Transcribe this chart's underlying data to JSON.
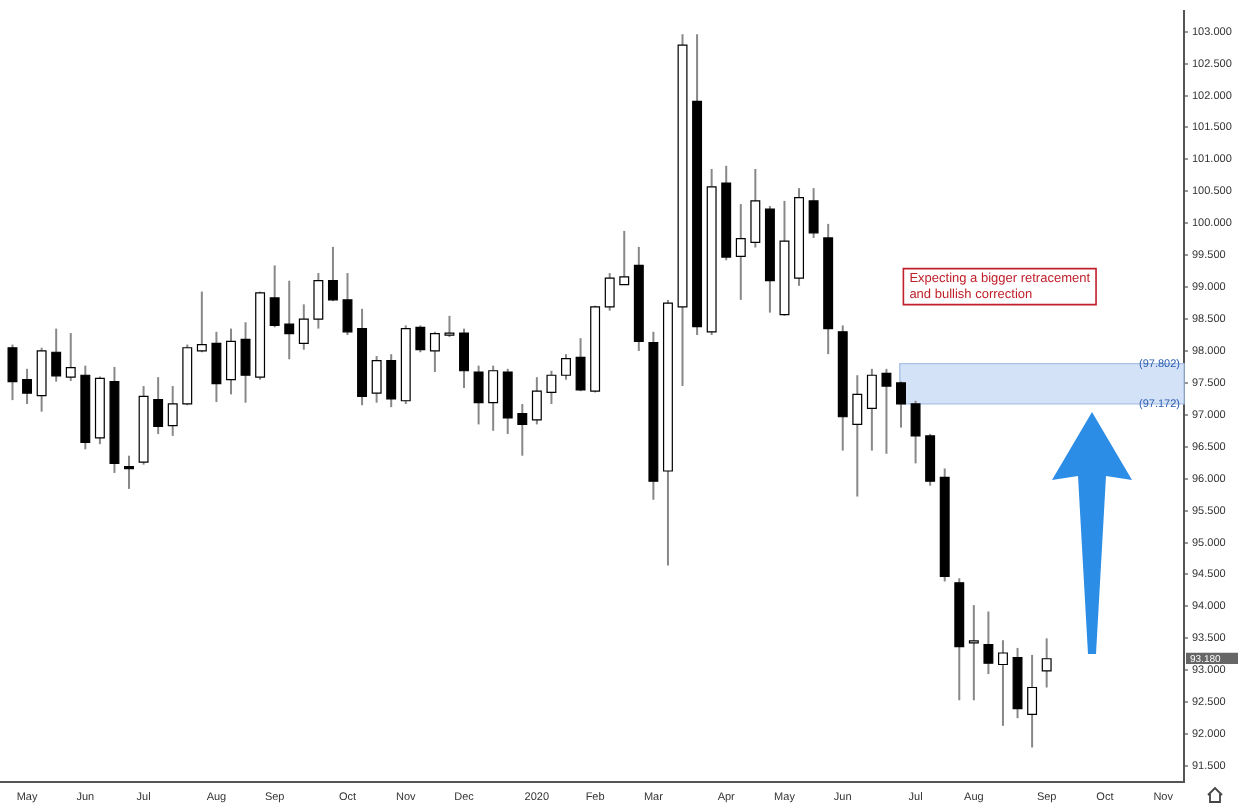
{
  "chart_data": {
    "type": "candlestick",
    "colors": [
      "#000000",
      "#000000",
      "#ffffff",
      "#000000",
      "#ffffff",
      "#000000",
      "#ffffff",
      "#000000",
      "#000000",
      "#ffffff",
      "#000000",
      "#ffffff",
      "#ffffff",
      "#ffffff",
      "#000000",
      "#ffffff",
      "#000000",
      "#ffffff",
      "#000000",
      "#000000",
      "#ffffff",
      "#ffffff",
      "#000000",
      "#000000",
      "#000000",
      "#ffffff",
      "#000000",
      "#ffffff",
      "#000000",
      "#ffffff",
      "#ffffff",
      "#000000",
      "#000000",
      "#ffffff",
      "#000000",
      "#000000",
      "#ffffff",
      "#ffffff",
      "#ffffff",
      "#000000",
      "#ffffff",
      "#ffffff",
      "#ffffff",
      "#000000",
      "#000000",
      "#ffffff",
      "#ffffff",
      "#000000",
      "#ffffff",
      "#000000",
      "#ffffff",
      "#ffffff",
      "#000000",
      "#ffffff",
      "#ffffff",
      "#000000",
      "#000000",
      "#000000",
      "#ffffff",
      "#ffffff",
      "#000000",
      "#000000",
      "#000000",
      "#000000",
      "#000000",
      "#000000",
      "#ffffff",
      "#000000",
      "#ffffff",
      "#000000",
      "#ffffff",
      "#ffffff"
    ],
    "x": [
      "2019-04-29",
      "2019-05-06",
      "2019-05-13",
      "2019-05-20",
      "2019-05-27",
      "2019-06-03",
      "2019-06-10",
      "2019-06-17",
      "2019-06-24",
      "2019-07-01",
      "2019-07-08",
      "2019-07-15",
      "2019-07-22",
      "2019-07-29",
      "2019-08-05",
      "2019-08-12",
      "2019-08-19",
      "2019-08-26",
      "2019-09-02",
      "2019-09-09",
      "2019-09-16",
      "2019-09-23",
      "2019-09-30",
      "2019-10-07",
      "2019-10-14",
      "2019-10-21",
      "2019-10-28",
      "2019-11-04",
      "2019-11-11",
      "2019-11-18",
      "2019-11-25",
      "2019-12-02",
      "2019-12-09",
      "2019-12-16",
      "2019-12-23",
      "2019-12-30",
      "2020-01-06",
      "2020-01-13",
      "2020-01-20",
      "2020-01-27",
      "2020-02-03",
      "2020-02-10",
      "2020-02-17",
      "2020-02-24",
      "2020-03-02",
      "2020-03-09",
      "2020-03-16",
      "2020-03-23",
      "2020-03-30",
      "2020-04-06",
      "2020-04-13",
      "2020-04-20",
      "2020-04-27",
      "2020-05-04",
      "2020-05-11",
      "2020-05-18",
      "2020-05-25",
      "2020-06-01",
      "2020-06-08",
      "2020-06-15",
      "2020-06-22",
      "2020-06-29",
      "2020-07-06",
      "2020-07-13",
      "2020-07-20",
      "2020-07-27",
      "2020-08-03",
      "2020-08-10",
      "2020-08-17",
      "2020-08-24",
      "2020-08-31",
      "2020-09-07"
    ],
    "ohlc": [
      [
        98.05,
        98.1,
        97.23,
        97.52
      ],
      [
        97.55,
        97.72,
        97.17,
        97.34
      ],
      [
        97.3,
        98.05,
        97.05,
        98.0
      ],
      [
        97.98,
        98.35,
        97.52,
        97.61
      ],
      [
        97.59,
        98.28,
        97.53,
        97.74
      ],
      [
        97.62,
        97.77,
        96.46,
        96.57
      ],
      [
        96.64,
        97.6,
        96.54,
        97.57
      ],
      [
        97.52,
        97.75,
        96.09,
        96.24
      ],
      [
        96.19,
        96.36,
        95.84,
        96.17
      ],
      [
        96.26,
        97.45,
        96.22,
        97.29
      ],
      [
        97.24,
        97.59,
        96.7,
        96.82
      ],
      [
        96.83,
        97.45,
        96.67,
        97.17
      ],
      [
        97.17,
        98.1,
        97.15,
        98.05
      ],
      [
        98.0,
        98.93,
        97.98,
        98.1
      ],
      [
        98.12,
        98.3,
        97.2,
        97.49
      ],
      [
        97.55,
        98.35,
        97.32,
        98.15
      ],
      [
        98.18,
        98.45,
        97.19,
        97.62
      ],
      [
        97.59,
        98.93,
        97.55,
        98.91
      ],
      [
        98.83,
        99.34,
        98.37,
        98.4
      ],
      [
        98.42,
        99.1,
        97.87,
        98.27
      ],
      [
        98.12,
        98.73,
        98.02,
        98.5
      ],
      [
        98.5,
        99.22,
        98.35,
        99.1
      ],
      [
        99.1,
        99.63,
        98.78,
        98.8
      ],
      [
        98.8,
        99.22,
        98.25,
        98.3
      ],
      [
        98.35,
        98.66,
        97.15,
        97.29
      ],
      [
        97.34,
        97.92,
        97.19,
        97.85
      ],
      [
        97.85,
        97.95,
        97.12,
        97.25
      ],
      [
        97.22,
        98.4,
        97.17,
        98.35
      ],
      [
        98.37,
        98.4,
        97.98,
        98.02
      ],
      [
        98.0,
        98.3,
        97.67,
        98.27
      ],
      [
        98.26,
        98.55,
        98.22,
        98.28
      ],
      [
        98.28,
        98.35,
        97.42,
        97.69
      ],
      [
        97.67,
        97.77,
        96.85,
        97.19
      ],
      [
        97.19,
        97.77,
        96.75,
        97.69
      ],
      [
        97.67,
        97.72,
        96.7,
        96.95
      ],
      [
        97.02,
        97.17,
        96.36,
        96.85
      ],
      [
        96.92,
        97.59,
        96.85,
        97.37
      ],
      [
        97.35,
        97.69,
        97.17,
        97.62
      ],
      [
        97.62,
        97.95,
        97.55,
        97.88
      ],
      [
        97.9,
        98.2,
        97.37,
        97.39
      ],
      [
        97.37,
        98.71,
        97.35,
        98.69
      ],
      [
        98.69,
        99.22,
        98.63,
        99.14
      ],
      [
        99.04,
        99.88,
        99.04,
        99.16
      ],
      [
        99.34,
        99.63,
        98.0,
        98.15
      ],
      [
        98.13,
        98.3,
        95.67,
        95.96
      ],
      [
        96.12,
        98.8,
        94.64,
        98.75
      ],
      [
        98.69,
        102.96,
        97.45,
        102.79
      ],
      [
        101.91,
        102.96,
        98.25,
        98.38
      ],
      [
        98.3,
        100.85,
        98.25,
        100.57
      ],
      [
        100.63,
        100.9,
        99.42,
        99.47
      ],
      [
        99.48,
        100.3,
        98.8,
        99.76
      ],
      [
        99.7,
        100.85,
        99.62,
        100.35
      ],
      [
        100.22,
        100.27,
        98.6,
        99.1
      ],
      [
        98.57,
        100.35,
        98.55,
        99.72
      ],
      [
        99.14,
        100.55,
        99.02,
        100.4
      ],
      [
        100.35,
        100.55,
        99.77,
        99.85
      ],
      [
        99.77,
        99.99,
        97.95,
        98.35
      ],
      [
        98.3,
        98.4,
        96.44,
        96.97
      ],
      [
        96.85,
        97.62,
        95.72,
        97.32
      ],
      [
        97.1,
        97.72,
        96.44,
        97.62
      ],
      [
        97.65,
        97.72,
        96.39,
        97.45
      ],
      [
        97.5,
        97.52,
        96.8,
        97.17
      ],
      [
        97.17,
        97.22,
        96.24,
        96.67
      ],
      [
        96.67,
        96.7,
        95.89,
        95.96
      ],
      [
        96.02,
        96.16,
        94.39,
        94.47
      ],
      [
        94.37,
        94.44,
        92.53,
        93.37
      ],
      [
        93.44,
        94.02,
        92.53,
        93.46
      ],
      [
        93.4,
        93.92,
        92.94,
        93.11
      ],
      [
        93.09,
        93.47,
        92.13,
        93.27
      ],
      [
        93.2,
        93.35,
        92.25,
        92.4
      ],
      [
        92.31,
        93.24,
        91.79,
        92.73
      ],
      [
        92.99,
        93.5,
        92.73,
        93.18
      ]
    ],
    "xlim": [
      "2019-04-23",
      "2020-11-12"
    ],
    "xticks": [
      {
        "value": "2019-05-06",
        "label": "May"
      },
      {
        "value": "2019-06-03",
        "label": "Jun"
      },
      {
        "value": "2019-07-01",
        "label": "Jul"
      },
      {
        "value": "2019-08-05",
        "label": "Aug"
      },
      {
        "value": "2019-09-02",
        "label": "Sep"
      },
      {
        "value": "2019-10-07",
        "label": "Oct"
      },
      {
        "value": "2019-11-04",
        "label": "Nov"
      },
      {
        "value": "2019-12-02",
        "label": "Dec"
      },
      {
        "value": "2020-01-06",
        "label": "2020"
      },
      {
        "value": "2020-02-03",
        "label": "Feb"
      },
      {
        "value": "2020-03-02",
        "label": "Mar"
      },
      {
        "value": "2020-04-06",
        "label": "Apr"
      },
      {
        "value": "2020-05-04",
        "label": "May"
      },
      {
        "value": "2020-06-01",
        "label": "Jun"
      },
      {
        "value": "2020-07-06",
        "label": "Jul"
      },
      {
        "value": "2020-08-03",
        "label": "Aug"
      },
      {
        "value": "2020-09-07",
        "label": "Sep"
      },
      {
        "value": "2020-10-05",
        "label": "Oct"
      },
      {
        "value": "2020-11-02",
        "label": "Nov"
      }
    ],
    "ylim": [
      91.25,
      103.33
    ],
    "yticks": [
      {
        "value": 91.5,
        "label": "91.500"
      },
      {
        "value": 92,
        "label": "92.000"
      },
      {
        "value": 92.5,
        "label": "92.500"
      },
      {
        "value": 93,
        "label": "93.000"
      },
      {
        "value": 93.5,
        "label": "93.500"
      },
      {
        "value": 94,
        "label": "94.000"
      },
      {
        "value": 94.5,
        "label": "94.500"
      },
      {
        "value": 95,
        "label": "95.000"
      },
      {
        "value": 95.5,
        "label": "95.500"
      },
      {
        "value": 96,
        "label": "96.000"
      },
      {
        "value": 96.5,
        "label": "96.500"
      },
      {
        "value": 97,
        "label": "97.000"
      },
      {
        "value": 97.5,
        "label": "97.500"
      },
      {
        "value": 98,
        "label": "98.000"
      },
      {
        "value": 98.5,
        "label": "98.500"
      },
      {
        "value": 99,
        "label": "99.000"
      },
      {
        "value": 99.5,
        "label": "99.500"
      },
      {
        "value": 100,
        "label": "100.000"
      },
      {
        "value": 100.5,
        "label": "100.500"
      },
      {
        "value": 101,
        "label": "101.000"
      },
      {
        "value": 101.5,
        "label": "101.500"
      },
      {
        "value": 102,
        "label": "102.000"
      },
      {
        "value": 102.5,
        "label": "102.500"
      },
      {
        "value": 103,
        "label": "103.000"
      }
    ],
    "bands": [
      {
        "axis": "y",
        "from": 97.172,
        "to": 97.802,
        "color": "#d4e2f7"
      }
    ],
    "annotations": [
      "Expecting a bigger retracement\nand bullish correction",
      {
        "text": "(97.802)",
        "x": "2020-11-12",
        "y": 97.802
      },
      {
        "text": "(97.172)",
        "x": "2020-11-12",
        "y": 97.172
      },
      "93.180"
    ],
    "grid": false,
    "legend": false
  }
}
